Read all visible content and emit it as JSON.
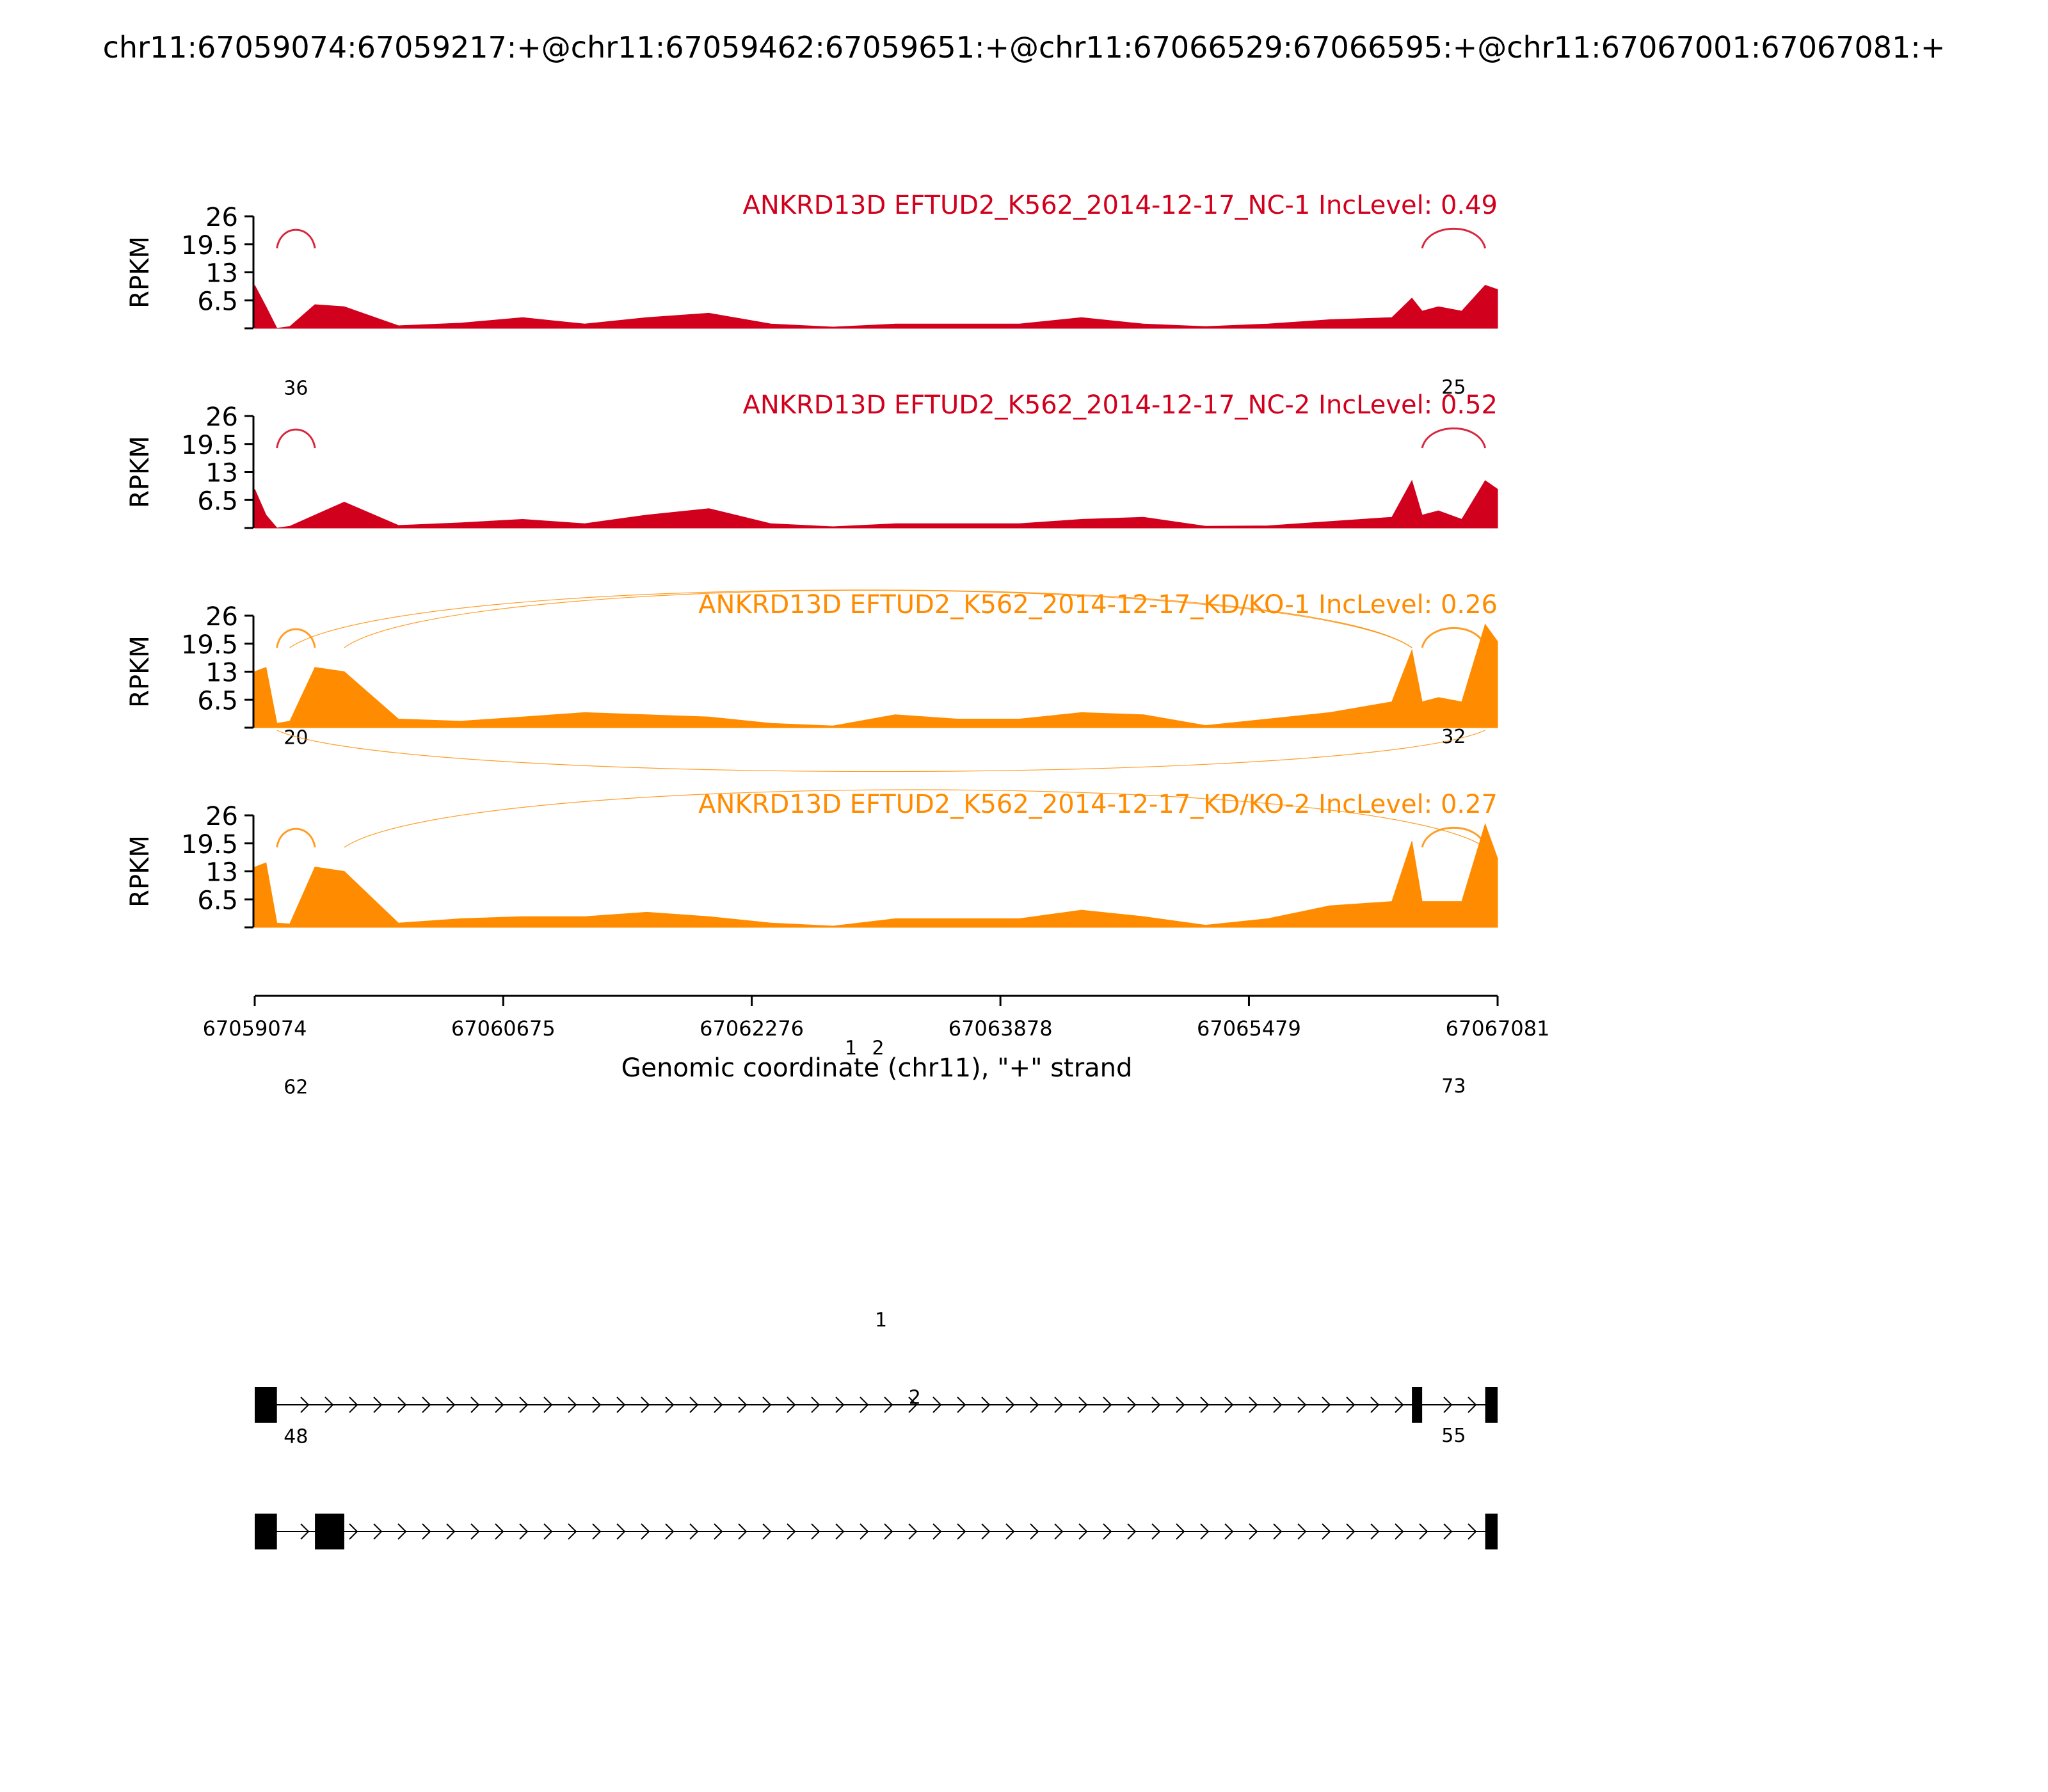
{
  "chart_data": {
    "type": "area",
    "title": "chr11:67059074:67059217:+@chr11:67059462:67059651:+@chr11:67066529:67066595:+@chr11:67067001:67067081:+",
    "xlabel": "Genomic coordinate (chr11), \"+\" strand",
    "ylabel": "RPKM",
    "xlim": [
      67059074,
      67067081
    ],
    "ylim": [
      0,
      26
    ],
    "x_ticks": [
      "67059074",
      "67060675",
      "67062276",
      "67063878",
      "67065479",
      "67067081"
    ],
    "y_ticks": [
      "26",
      "19.5",
      "13",
      "6.5"
    ],
    "y_tick_values": [
      26,
      19.5,
      13,
      6.5
    ],
    "colors": {
      "NC": "#d1001c",
      "KD": "#ff8c00"
    },
    "x_positions": [
      67059074,
      67059147,
      67059217,
      67059300,
      67059462,
      67059651,
      67060000,
      67060400,
      67060800,
      67061200,
      67061600,
      67062000,
      67062400,
      67062800,
      67063200,
      67063600,
      67064000,
      67064400,
      67064800,
      67065200,
      67065600,
      67066000,
      67066400,
      67066529,
      67066595,
      67066700,
      67066850,
      67067001,
      67067081
    ],
    "samples": [
      {
        "label": "ANKRD13D EFTUD2_K562_2014-12-17_NC-1 IncLevel: 0.49",
        "group": "NC",
        "values": [
          10,
          5,
          0,
          0.4,
          5.5,
          5,
          0.6,
          1.2,
          2.5,
          1,
          2.5,
          3.5,
          1,
          0.3,
          1,
          1,
          1,
          2.5,
          1,
          0.4,
          1,
          2,
          2.5,
          7,
          4,
          5,
          4,
          10,
          9
        ],
        "junctions": [
          {
            "label": "36",
            "from": 67059217,
            "to": 67059462,
            "side": "top"
          },
          {
            "label": "25",
            "from": 67066595,
            "to": 67067001,
            "side": "top"
          }
        ]
      },
      {
        "label": "ANKRD13D EFTUD2_K562_2014-12-17_NC-2 IncLevel: 0.52",
        "group": "NC",
        "values": [
          9,
          3,
          0,
          0.4,
          3,
          6,
          0.6,
          1.2,
          2,
          1,
          3,
          4.5,
          1,
          0.3,
          1,
          1,
          1,
          2,
          2.5,
          0.4,
          0.5,
          1.5,
          2.5,
          11,
          3,
          4,
          2,
          11,
          9
        ],
        "junctions": [
          {
            "label": "20",
            "from": 67059217,
            "to": 67059462,
            "side": "top"
          },
          {
            "label": "32",
            "from": 67066595,
            "to": 67067001,
            "side": "top"
          }
        ]
      },
      {
        "label": "ANKRD13D EFTUD2_K562_2014-12-17_KD/KO-1 IncLevel: 0.26",
        "group": "KD",
        "values": [
          13,
          14,
          1,
          1.5,
          14,
          13,
          2,
          1.5,
          2.5,
          3.5,
          3,
          2.5,
          1,
          0.4,
          3,
          2,
          2,
          3.5,
          3,
          0.5,
          2,
          3.5,
          6,
          18,
          6,
          7,
          6,
          24,
          20
        ],
        "junctions": [
          {
            "label": "62",
            "from": 67059217,
            "to": 67059462,
            "side": "top"
          },
          {
            "label": "73",
            "from": 67066595,
            "to": 67067001,
            "side": "top"
          },
          {
            "label": "1",
            "from": 67059300,
            "to": 67066529,
            "side": "top"
          },
          {
            "label": "2",
            "from": 67059651,
            "to": 67066529,
            "side": "top"
          },
          {
            "label": "1",
            "from": 67059217,
            "to": 67067001,
            "side": "bottom"
          }
        ]
      },
      {
        "label": "ANKRD13D EFTUD2_K562_2014-12-17_KD/KO-2 IncLevel: 0.27",
        "group": "KD",
        "values": [
          14,
          15,
          1,
          0.8,
          14,
          13,
          1,
          2,
          2.5,
          2.5,
          3.5,
          2.5,
          1,
          0.3,
          2,
          2,
          2,
          4,
          2.5,
          0.5,
          2,
          5,
          6,
          20,
          6,
          6,
          6,
          24,
          16
        ],
        "junctions": [
          {
            "label": "48",
            "from": 67059217,
            "to": 67059462,
            "side": "top"
          },
          {
            "label": "55",
            "from": 67066595,
            "to": 67067001,
            "side": "top"
          },
          {
            "label": "2",
            "from": 67059651,
            "to": 67067001,
            "side": "top"
          }
        ]
      }
    ],
    "isoforms": [
      {
        "exons": [
          [
            67059074,
            67059217
          ],
          [
            67066529,
            67066595
          ],
          [
            67067001,
            67067081
          ]
        ]
      },
      {
        "exons": [
          [
            67059074,
            67059217
          ],
          [
            67059462,
            67059651
          ],
          [
            67067001,
            67067081
          ]
        ]
      }
    ]
  }
}
